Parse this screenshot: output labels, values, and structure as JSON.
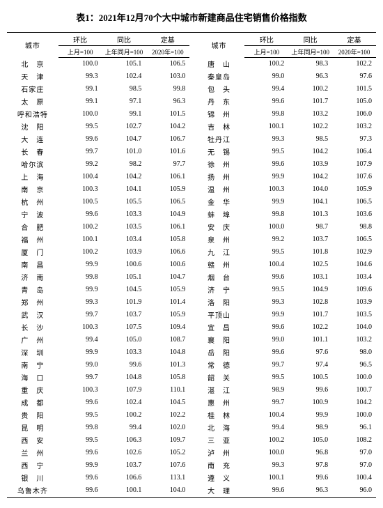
{
  "title": "表1：2021年12月70个大中城市新建商品住宅销售价格指数",
  "headers": {
    "city": "城市",
    "mom": "环比",
    "mom_sub": "上月=100",
    "yoy": "同比",
    "yoy_sub": "上年同月=100",
    "base": "定基",
    "base_sub": "2020年=100"
  },
  "left": [
    {
      "c": "北　京",
      "m": "100.0",
      "y": "105.1",
      "b": "106.5"
    },
    {
      "c": "天　津",
      "m": "99.3",
      "y": "102.4",
      "b": "103.0"
    },
    {
      "c": "石家庄",
      "m": "99.1",
      "y": "98.5",
      "b": "99.8"
    },
    {
      "c": "太　原",
      "m": "99.1",
      "y": "97.1",
      "b": "96.3"
    },
    {
      "c": "呼和浩特",
      "m": "100.0",
      "y": "99.1",
      "b": "101.5"
    },
    {
      "c": "沈　阳",
      "m": "99.5",
      "y": "102.7",
      "b": "104.2"
    },
    {
      "c": "大　连",
      "m": "99.6",
      "y": "104.7",
      "b": "106.7"
    },
    {
      "c": "长　春",
      "m": "99.7",
      "y": "101.0",
      "b": "101.6"
    },
    {
      "c": "哈尔滨",
      "m": "99.2",
      "y": "98.2",
      "b": "97.7"
    },
    {
      "c": "上　海",
      "m": "100.4",
      "y": "104.2",
      "b": "106.1"
    },
    {
      "c": "南　京",
      "m": "100.3",
      "y": "104.1",
      "b": "105.9"
    },
    {
      "c": "杭　州",
      "m": "100.5",
      "y": "105.5",
      "b": "106.5"
    },
    {
      "c": "宁　波",
      "m": "99.6",
      "y": "103.3",
      "b": "104.9"
    },
    {
      "c": "合　肥",
      "m": "100.2",
      "y": "103.5",
      "b": "106.1"
    },
    {
      "c": "福　州",
      "m": "100.1",
      "y": "103.4",
      "b": "105.8"
    },
    {
      "c": "厦　门",
      "m": "100.2",
      "y": "103.9",
      "b": "106.6"
    },
    {
      "c": "南　昌",
      "m": "99.9",
      "y": "100.6",
      "b": "100.6"
    },
    {
      "c": "济　南",
      "m": "99.8",
      "y": "105.1",
      "b": "104.7"
    },
    {
      "c": "青　岛",
      "m": "99.9",
      "y": "104.5",
      "b": "105.9"
    },
    {
      "c": "郑　州",
      "m": "99.3",
      "y": "101.9",
      "b": "101.4"
    },
    {
      "c": "武　汉",
      "m": "99.7",
      "y": "103.7",
      "b": "105.9"
    },
    {
      "c": "长　沙",
      "m": "100.3",
      "y": "107.5",
      "b": "109.4"
    },
    {
      "c": "广　州",
      "m": "99.4",
      "y": "105.0",
      "b": "108.7"
    },
    {
      "c": "深　圳",
      "m": "99.9",
      "y": "103.3",
      "b": "104.8"
    },
    {
      "c": "南　宁",
      "m": "99.0",
      "y": "99.6",
      "b": "101.3"
    },
    {
      "c": "海　口",
      "m": "99.7",
      "y": "104.8",
      "b": "105.8"
    },
    {
      "c": "重　庆",
      "m": "100.3",
      "y": "107.9",
      "b": "110.1"
    },
    {
      "c": "成　都",
      "m": "99.6",
      "y": "102.4",
      "b": "104.5"
    },
    {
      "c": "贵　阳",
      "m": "99.5",
      "y": "100.2",
      "b": "102.2"
    },
    {
      "c": "昆　明",
      "m": "99.8",
      "y": "99.4",
      "b": "102.0"
    },
    {
      "c": "西　安",
      "m": "99.5",
      "y": "106.3",
      "b": "109.7"
    },
    {
      "c": "兰　州",
      "m": "99.6",
      "y": "102.6",
      "b": "105.2"
    },
    {
      "c": "西　宁",
      "m": "99.9",
      "y": "103.7",
      "b": "107.6"
    },
    {
      "c": "银　川",
      "m": "99.6",
      "y": "106.6",
      "b": "113.1"
    },
    {
      "c": "乌鲁木齐",
      "m": "99.6",
      "y": "100.1",
      "b": "104.0"
    }
  ],
  "right": [
    {
      "c": "唐　山",
      "m": "100.2",
      "y": "98.3",
      "b": "102.2"
    },
    {
      "c": "秦皇岛",
      "m": "99.0",
      "y": "96.3",
      "b": "97.6"
    },
    {
      "c": "包　头",
      "m": "99.4",
      "y": "100.2",
      "b": "101.5"
    },
    {
      "c": "丹　东",
      "m": "99.6",
      "y": "101.7",
      "b": "105.0"
    },
    {
      "c": "锦　州",
      "m": "99.8",
      "y": "103.2",
      "b": "106.0"
    },
    {
      "c": "吉　林",
      "m": "100.1",
      "y": "102.2",
      "b": "103.2"
    },
    {
      "c": "牡丹江",
      "m": "99.3",
      "y": "98.5",
      "b": "97.3"
    },
    {
      "c": "无　锡",
      "m": "99.5",
      "y": "104.2",
      "b": "106.4"
    },
    {
      "c": "徐　州",
      "m": "99.6",
      "y": "103.9",
      "b": "107.9"
    },
    {
      "c": "扬　州",
      "m": "99.9",
      "y": "104.2",
      "b": "107.6"
    },
    {
      "c": "温　州",
      "m": "100.3",
      "y": "104.0",
      "b": "105.9"
    },
    {
      "c": "金　华",
      "m": "99.9",
      "y": "104.1",
      "b": "106.5"
    },
    {
      "c": "蚌　埠",
      "m": "99.8",
      "y": "101.3",
      "b": "103.6"
    },
    {
      "c": "安　庆",
      "m": "100.0",
      "y": "98.7",
      "b": "98.8"
    },
    {
      "c": "泉　州",
      "m": "99.2",
      "y": "103.7",
      "b": "106.5"
    },
    {
      "c": "九　江",
      "m": "99.5",
      "y": "101.8",
      "b": "102.9"
    },
    {
      "c": "赣　州",
      "m": "100.4",
      "y": "102.5",
      "b": "104.6"
    },
    {
      "c": "烟　台",
      "m": "99.6",
      "y": "103.1",
      "b": "103.4"
    },
    {
      "c": "济　宁",
      "m": "99.5",
      "y": "104.9",
      "b": "109.6"
    },
    {
      "c": "洛　阳",
      "m": "99.3",
      "y": "102.8",
      "b": "103.9"
    },
    {
      "c": "平顶山",
      "m": "99.9",
      "y": "101.7",
      "b": "103.5"
    },
    {
      "c": "宜　昌",
      "m": "99.6",
      "y": "102.2",
      "b": "104.0"
    },
    {
      "c": "襄　阳",
      "m": "99.0",
      "y": "101.1",
      "b": "103.2"
    },
    {
      "c": "岳　阳",
      "m": "99.6",
      "y": "97.6",
      "b": "98.0"
    },
    {
      "c": "常　德",
      "m": "99.7",
      "y": "97.4",
      "b": "96.5"
    },
    {
      "c": "韶　关",
      "m": "99.5",
      "y": "100.5",
      "b": "100.0"
    },
    {
      "c": "湛　江",
      "m": "98.9",
      "y": "99.6",
      "b": "100.7"
    },
    {
      "c": "惠　州",
      "m": "99.7",
      "y": "100.9",
      "b": "104.2"
    },
    {
      "c": "桂　林",
      "m": "100.4",
      "y": "99.9",
      "b": "100.0"
    },
    {
      "c": "北　海",
      "m": "99.4",
      "y": "98.9",
      "b": "96.1"
    },
    {
      "c": "三　亚",
      "m": "100.2",
      "y": "105.0",
      "b": "108.2"
    },
    {
      "c": "泸　州",
      "m": "100.0",
      "y": "96.8",
      "b": "97.0"
    },
    {
      "c": "南　充",
      "m": "99.3",
      "y": "97.8",
      "b": "97.0"
    },
    {
      "c": "遵　义",
      "m": "100.1",
      "y": "99.6",
      "b": "100.4"
    },
    {
      "c": "大　理",
      "m": "99.6",
      "y": "96.3",
      "b": "96.0"
    }
  ]
}
